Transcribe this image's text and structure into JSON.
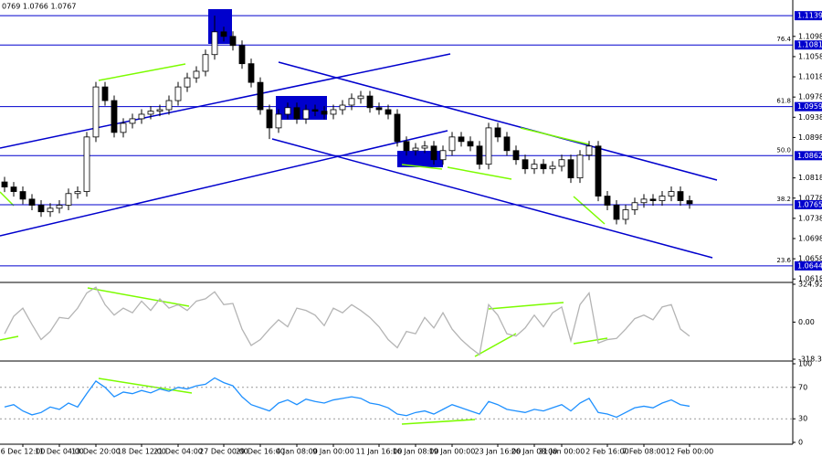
{
  "chart_data": [
    {
      "type": "candlestick",
      "header": "0769 1.0766 1.0767",
      "categories": [
        null,
        null,
        "6 Dec 12:00",
        null,
        null,
        null,
        "11 Dec 04:00",
        null,
        null,
        null,
        "13 Dec 20:00",
        null,
        null,
        null,
        null,
        "18 Dec 12:00",
        null,
        null,
        null,
        "21 Dec 04:00",
        null,
        null,
        null,
        null,
        "27 Dec 00:00",
        null,
        null,
        null,
        "29 Dec 16:00",
        null,
        null,
        null,
        "4 Jan 08:00",
        null,
        null,
        null,
        "9 Jan 00:00",
        null,
        null,
        null,
        null,
        "11 Jan 16:00",
        null,
        null,
        null,
        "16 Jan 08:00",
        null,
        null,
        null,
        "19 Jan 00:00",
        null,
        null,
        null,
        null,
        "23 Jan 16:00",
        null,
        null,
        null,
        "26 Jan 08:00",
        null,
        null,
        "31 Jan 00:00",
        null,
        null,
        null,
        null,
        "2 Feb 16:00",
        null,
        null,
        null,
        "7 Feb 08:00",
        null,
        null,
        null,
        null,
        "12 Feb 00:00"
      ],
      "open": [
        1.081,
        1.08,
        1.0791,
        1.0776,
        1.0764,
        1.0751,
        1.0758,
        1.0764,
        1.0787,
        1.0791,
        1.0899,
        1.0998,
        1.0971,
        1.0908,
        1.0926,
        1.0935,
        1.0944,
        1.095,
        1.0953,
        1.0971,
        1.0998,
        1.1016,
        1.1029,
        1.1062,
        1.1107,
        1.1098,
        1.108,
        1.1044,
        1.1007,
        1.0953,
        1.0917,
        1.0944,
        1.0957,
        1.0935,
        1.0953,
        1.095,
        1.0944,
        1.0953,
        1.0962,
        1.0975,
        1.098,
        1.0957,
        1.0953,
        1.0944,
        1.089,
        1.0872,
        1.0877,
        1.0881,
        1.0854,
        1.0872,
        1.0899,
        1.089,
        1.0881,
        1.0845,
        1.0917,
        1.0899,
        1.0872,
        1.0854,
        1.0836,
        1.0845,
        1.0836,
        1.0841,
        1.0854,
        1.0818,
        1.0863,
        1.0881,
        1.0782,
        1.0764,
        1.0736,
        1.0755,
        1.0769,
        1.0776,
        1.0773,
        1.0782,
        1.0791,
        1.0773
      ],
      "high": [
        1.082,
        1.081,
        1.0801,
        1.0786,
        1.0774,
        1.0768,
        1.0774,
        1.0797,
        1.0801,
        1.0909,
        1.1008,
        1.1008,
        1.0981,
        1.0936,
        1.0945,
        1.0954,
        1.096,
        1.0963,
        1.0981,
        1.1008,
        1.1026,
        1.1039,
        1.1072,
        1.1139,
        1.1117,
        1.1108,
        1.109,
        1.1054,
        1.1017,
        1.0963,
        1.0954,
        1.0967,
        1.0967,
        1.0963,
        1.0963,
        1.096,
        1.0963,
        1.0972,
        1.0985,
        1.099,
        1.099,
        1.0967,
        1.0963,
        1.0954,
        1.09,
        1.0887,
        1.0891,
        1.0891,
        1.0882,
        1.0909,
        1.0909,
        1.09,
        1.0891,
        1.0927,
        1.0927,
        1.0909,
        1.0882,
        1.0864,
        1.0855,
        1.0855,
        1.0851,
        1.0864,
        1.0864,
        1.0873,
        1.0891,
        1.0891,
        1.0792,
        1.0774,
        1.0765,
        1.0779,
        1.0786,
        1.0786,
        1.0792,
        1.0801,
        1.0801,
        1.0783
      ],
      "low": [
        1.079,
        1.0781,
        1.0766,
        1.0754,
        1.0741,
        1.0741,
        1.0748,
        1.0754,
        1.0777,
        1.0781,
        1.0889,
        1.0961,
        1.0898,
        1.0898,
        1.0916,
        1.0925,
        1.0934,
        1.094,
        1.0943,
        1.0961,
        1.0988,
        1.1006,
        1.1019,
        1.1052,
        1.1088,
        1.107,
        1.1034,
        1.0997,
        1.0943,
        1.0895,
        1.0907,
        1.0934,
        1.0925,
        1.0925,
        1.094,
        1.0934,
        1.0934,
        1.0943,
        1.0952,
        1.0965,
        1.0947,
        1.0943,
        1.0934,
        1.088,
        1.0862,
        1.0862,
        1.0867,
        1.0844,
        1.0844,
        1.0862,
        1.088,
        1.0871,
        1.0835,
        1.0835,
        1.0889,
        1.0862,
        1.0844,
        1.0826,
        1.0826,
        1.0826,
        1.0826,
        1.0831,
        1.0808,
        1.0808,
        1.0853,
        1.0772,
        1.0754,
        1.0726,
        1.0726,
        1.0745,
        1.0759,
        1.0763,
        1.0763,
        1.0772,
        1.0763,
        1.0757
      ],
      "close": [
        1.08,
        1.0791,
        1.0776,
        1.0764,
        1.0751,
        1.0758,
        1.0764,
        1.0787,
        1.0791,
        1.0899,
        1.0998,
        1.0971,
        1.0908,
        1.0926,
        1.0935,
        1.0944,
        1.095,
        1.0953,
        1.0971,
        1.0998,
        1.1016,
        1.1029,
        1.1062,
        1.1107,
        1.1098,
        1.108,
        1.1044,
        1.1007,
        1.0953,
        1.0917,
        1.0944,
        1.0957,
        1.0935,
        1.0953,
        1.095,
        1.0944,
        1.0953,
        1.0962,
        1.0975,
        1.098,
        1.0957,
        1.0953,
        1.0944,
        1.089,
        1.0872,
        1.0877,
        1.0881,
        1.0854,
        1.0872,
        1.0899,
        1.089,
        1.0881,
        1.0845,
        1.0917,
        1.0899,
        1.0872,
        1.0854,
        1.0836,
        1.0845,
        1.0836,
        1.0841,
        1.0854,
        1.0818,
        1.0863,
        1.0881,
        1.0782,
        1.0764,
        1.0736,
        1.0755,
        1.0769,
        1.0776,
        1.0773,
        1.0782,
        1.0791,
        1.0773,
        1.0767
      ],
      "ylim": [
        1.0613,
        1.117
      ],
      "yticks": [
        1.0618,
        1.0658,
        1.0698,
        1.0738,
        1.0778,
        1.0818,
        1.0898,
        1.0938,
        1.0978,
        1.1018,
        1.1058,
        1.1098
      ],
      "levels": [
        {
          "price": 1.1139
        },
        {
          "price": 1.1081,
          "fib": "76.4"
        },
        {
          "price": 1.0959,
          "fib": "61.8"
        },
        {
          "price": 1.0862,
          "fib": "50.0"
        },
        {
          "price": 1.0765,
          "fib": "38.2"
        },
        {
          "price": 1.0644,
          "fib": "23.6"
        }
      ],
      "color": "#0000cd"
    },
    {
      "type": "line",
      "color": "#b4b4b4",
      "values": [
        -100,
        50,
        120,
        -20,
        -150,
        -80,
        40,
        30,
        120,
        250,
        300,
        150,
        60,
        120,
        80,
        180,
        100,
        200,
        120,
        150,
        100,
        180,
        200,
        260,
        150,
        160,
        -60,
        -200,
        -150,
        -60,
        20,
        -40,
        120,
        100,
        60,
        -30,
        120,
        80,
        150,
        100,
        40,
        -40,
        -150,
        -220,
        -80,
        -100,
        40,
        -50,
        80,
        -60,
        -150,
        -220,
        -280,
        150,
        60,
        -100,
        -120,
        -50,
        60,
        -40,
        80,
        130,
        -160,
        150,
        250,
        -180,
        -150,
        -140,
        -60,
        30,
        60,
        20,
        130,
        150,
        -60,
        -120
      ],
      "ylim": [
        -318.308,
        324.9241
      ],
      "yticks": [
        -318.308,
        {
          "value": 0,
          "label": "0.00"
        },
        324.9241
      ]
    },
    {
      "type": "line",
      "color": "#1e90ff",
      "values": [
        45,
        48,
        40,
        35,
        38,
        45,
        42,
        50,
        45,
        62,
        78,
        70,
        58,
        64,
        62,
        66,
        63,
        68,
        65,
        70,
        68,
        72,
        74,
        82,
        76,
        72,
        58,
        48,
        44,
        40,
        50,
        54,
        48,
        55,
        52,
        50,
        54,
        56,
        58,
        56,
        50,
        48,
        44,
        36,
        34,
        38,
        40,
        36,
        42,
        48,
        44,
        40,
        36,
        52,
        48,
        42,
        40,
        38,
        42,
        40,
        44,
        48,
        40,
        50,
        56,
        38,
        36,
        32,
        38,
        44,
        46,
        44,
        50,
        54,
        48,
        46
      ],
      "ylim": [
        0,
        100
      ],
      "yticks": [
        0,
        30,
        70,
        100
      ],
      "dotted": [
        30,
        70
      ]
    }
  ]
}
